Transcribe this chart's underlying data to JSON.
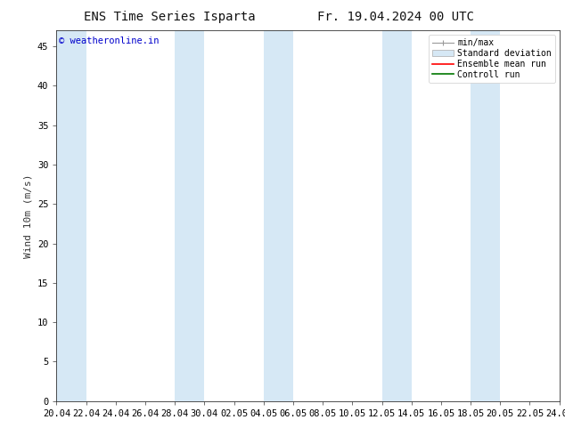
{
  "title_left": "ENS Time Series Isparta",
  "title_right": "Fr. 19.04.2024 00 UTC",
  "ylabel": "Wind 10m (m/s)",
  "watermark": "© weatheronline.in",
  "watermark_color": "#0000cc",
  "ylim": [
    0,
    47
  ],
  "yticks": [
    0,
    5,
    10,
    15,
    20,
    25,
    30,
    35,
    40,
    45
  ],
  "xtick_labels": [
    "20.04",
    "22.04",
    "24.04",
    "26.04",
    "28.04",
    "30.04",
    "02.05",
    "04.05",
    "06.05",
    "08.05",
    "10.05",
    "12.05",
    "14.05",
    "16.05",
    "18.05",
    "20.05",
    "22.05",
    "24.05"
  ],
  "background_color": "#ffffff",
  "plot_bg_color": "#ffffff",
  "shaded_columns_color": "#d6e8f5",
  "shaded_bands": [
    [
      "20.04",
      "22.04"
    ],
    [
      "28.04",
      "30.04"
    ],
    [
      "04.05",
      "06.05"
    ],
    [
      "12.05",
      "14.05"
    ],
    [
      "18.05",
      "20.05"
    ]
  ],
  "legend_labels": [
    "min/max",
    "Standard deviation",
    "Ensemble mean run",
    "Controll run"
  ],
  "legend_line_colors": [
    "#aaaaaa",
    "#d6e8f5",
    "#ff0000",
    "#007700"
  ],
  "font_size": 8,
  "tick_font_size": 7.5,
  "title_font_size": 10,
  "watermark_font_size": 7.5
}
